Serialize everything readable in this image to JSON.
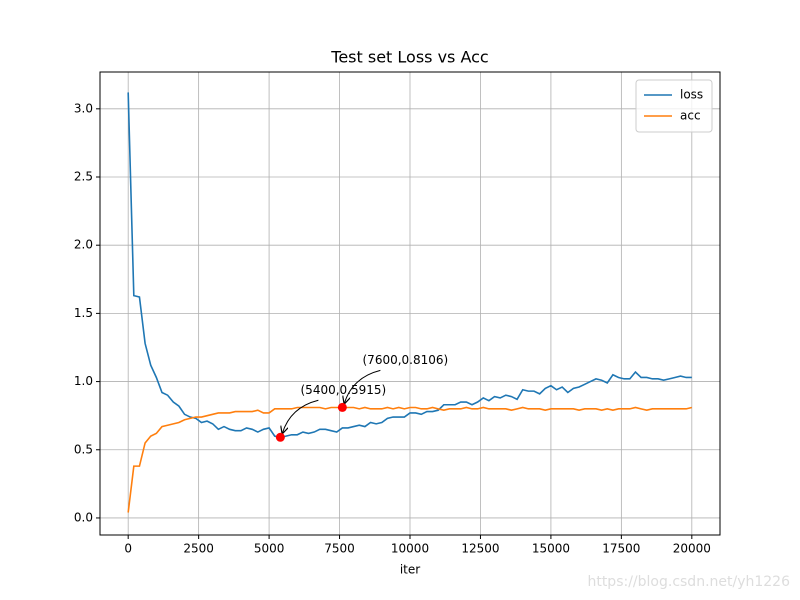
{
  "chart_data": {
    "type": "line",
    "title": "Test set Loss vs Acc",
    "x_label": "iter",
    "x": [
      0,
      200,
      400,
      600,
      800,
      1000,
      1200,
      1400,
      1600,
      1800,
      2000,
      2200,
      2400,
      2600,
      2800,
      3000,
      3200,
      3400,
      3600,
      3800,
      4000,
      4200,
      4400,
      4600,
      4800,
      5000,
      5200,
      5400,
      5600,
      5800,
      6000,
      6200,
      6400,
      6600,
      6800,
      7000,
      7200,
      7400,
      7600,
      7800,
      8000,
      8200,
      8400,
      8600,
      8800,
      9000,
      9200,
      9400,
      9600,
      9800,
      10000,
      10200,
      10400,
      10600,
      10800,
      11000,
      11200,
      11400,
      11600,
      11800,
      12000,
      12200,
      12400,
      12600,
      12800,
      13000,
      13200,
      13400,
      13600,
      13800,
      14000,
      14200,
      14400,
      14600,
      14800,
      15000,
      15200,
      15400,
      15600,
      15800,
      16000,
      16200,
      16400,
      16600,
      16800,
      17000,
      17200,
      17400,
      17600,
      17800,
      18000,
      18200,
      18400,
      18600,
      18800,
      19000,
      19200,
      19400,
      19600,
      19800,
      20000
    ],
    "series": [
      {
        "name": "loss",
        "color": "#1f77b4",
        "values": [
          3.12,
          1.63,
          1.62,
          1.28,
          1.12,
          1.03,
          0.92,
          0.9,
          0.85,
          0.82,
          0.76,
          0.74,
          0.73,
          0.7,
          0.71,
          0.69,
          0.65,
          0.67,
          0.65,
          0.64,
          0.64,
          0.66,
          0.65,
          0.63,
          0.65,
          0.66,
          0.6,
          0.5915,
          0.6,
          0.61,
          0.61,
          0.63,
          0.62,
          0.63,
          0.65,
          0.65,
          0.64,
          0.63,
          0.66,
          0.66,
          0.67,
          0.68,
          0.67,
          0.7,
          0.69,
          0.7,
          0.73,
          0.74,
          0.74,
          0.74,
          0.77,
          0.77,
          0.76,
          0.78,
          0.78,
          0.79,
          0.83,
          0.83,
          0.83,
          0.85,
          0.85,
          0.83,
          0.85,
          0.88,
          0.86,
          0.89,
          0.88,
          0.9,
          0.89,
          0.87,
          0.94,
          0.93,
          0.93,
          0.91,
          0.95,
          0.97,
          0.94,
          0.96,
          0.92,
          0.95,
          0.96,
          0.98,
          1.0,
          1.02,
          1.01,
          0.99,
          1.05,
          1.03,
          1.02,
          1.02,
          1.07,
          1.03,
          1.03,
          1.02,
          1.02,
          1.01,
          1.02,
          1.03,
          1.04,
          1.03,
          1.03
        ]
      },
      {
        "name": "acc",
        "color": "#ff7f0e",
        "values": [
          0.04,
          0.38,
          0.38,
          0.55,
          0.6,
          0.62,
          0.67,
          0.68,
          0.69,
          0.7,
          0.72,
          0.73,
          0.74,
          0.74,
          0.75,
          0.76,
          0.77,
          0.77,
          0.77,
          0.78,
          0.78,
          0.78,
          0.78,
          0.79,
          0.77,
          0.77,
          0.8,
          0.8,
          0.8,
          0.8,
          0.81,
          0.81,
          0.81,
          0.81,
          0.81,
          0.8,
          0.81,
          0.81,
          0.8106,
          0.81,
          0.81,
          0.8,
          0.81,
          0.8,
          0.8,
          0.8,
          0.81,
          0.8,
          0.81,
          0.8,
          0.81,
          0.81,
          0.8,
          0.8,
          0.81,
          0.8,
          0.79,
          0.8,
          0.8,
          0.8,
          0.81,
          0.8,
          0.8,
          0.81,
          0.8,
          0.8,
          0.8,
          0.8,
          0.79,
          0.8,
          0.81,
          0.8,
          0.8,
          0.8,
          0.79,
          0.8,
          0.8,
          0.8,
          0.8,
          0.8,
          0.79,
          0.8,
          0.8,
          0.8,
          0.79,
          0.8,
          0.79,
          0.8,
          0.8,
          0.8,
          0.81,
          0.8,
          0.79,
          0.8,
          0.8,
          0.8,
          0.8,
          0.8,
          0.8,
          0.8,
          0.81
        ]
      }
    ],
    "annotations": [
      {
        "text": "(5400,0.5915)",
        "x": 5400,
        "y": 0.5915,
        "color": "#ff0000"
      },
      {
        "text": "(7600,0.8106)",
        "x": 7600,
        "y": 0.8106,
        "color": "#ff0000"
      }
    ],
    "xlim": [
      -1000,
      21000
    ],
    "xticks": [
      0,
      2500,
      5000,
      7500,
      10000,
      12500,
      15000,
      17500,
      20000
    ],
    "ylim": [
      -0.125,
      3.27
    ],
    "yticks": [
      {
        "value": 0,
        "label": "0.0"
      },
      0.5,
      {
        "value": 1,
        "label": "1.0"
      },
      1.5,
      {
        "value": 2,
        "label": "2.0"
      },
      2.5,
      {
        "value": 3,
        "label": "3.0"
      }
    ],
    "grid": true,
    "legend": "upper right",
    "watermark": "https://blog.csdn.net/yh1226"
  }
}
